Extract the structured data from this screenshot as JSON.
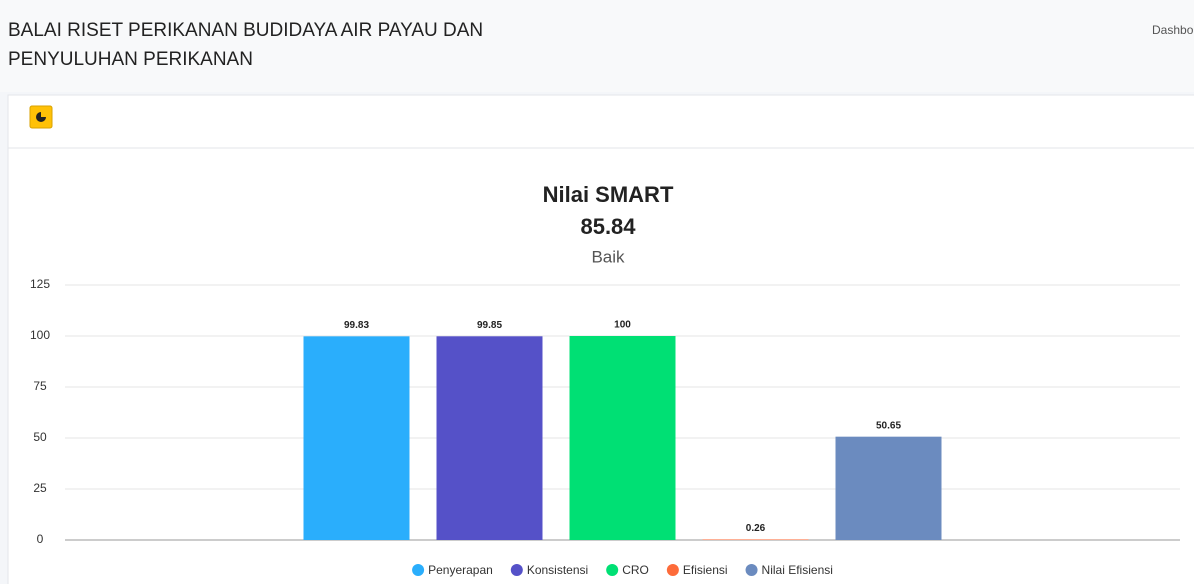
{
  "header": {
    "title": [
      "BALAI RISET PERIKANAN BUDIDAYA AIR PAYAU DAN",
      "PENYULUHAN PERIKANAN"
    ],
    "nav": "Dashbo"
  },
  "chart_data": {
    "type": "bar",
    "title": "Nilai SMART",
    "subtitle": "85.84",
    "caption": "Baik",
    "series": [
      {
        "name": "Penyerapan",
        "color": "#2aaefc",
        "values": [
          99.83
        ]
      },
      {
        "name": "Konsistensi",
        "color": "#5551c8",
        "values": [
          99.85
        ]
      },
      {
        "name": "CRO",
        "color": "#00e074",
        "values": [
          100
        ]
      },
      {
        "name": "Efisiensi",
        "color": "#fd6b3a",
        "values": [
          0.26
        ]
      },
      {
        "name": "Nilai Efisiensi",
        "color": "#6b8bbf",
        "values": [
          50.65
        ]
      }
    ],
    "ylim": [
      0,
      125
    ],
    "yticks": [
      0,
      25,
      50,
      75,
      100,
      125
    ],
    "grid": true,
    "legend": "bottom"
  }
}
